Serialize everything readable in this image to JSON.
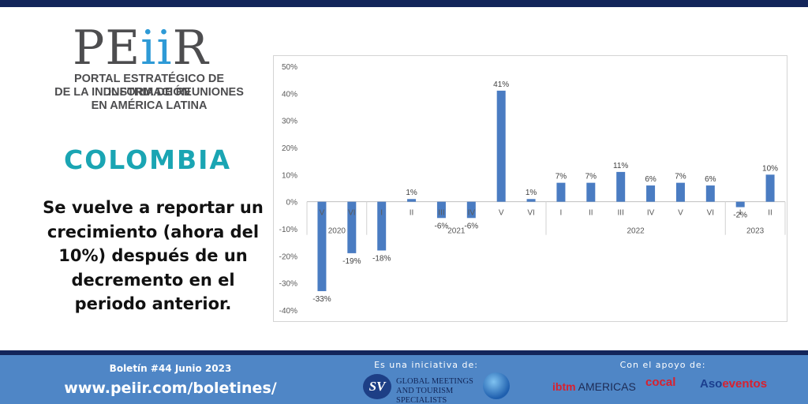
{
  "logo": {
    "word_pre": "PE",
    "word_ii": "ii",
    "word_post": "R",
    "tagline": [
      "PORTAL ESTRATÉGICO DE INFORMACIÓN",
      "DE LA INDUSTRIA DE REUNIONES",
      "EN AMÉRICA LATINA"
    ]
  },
  "country": "COLOMBIA",
  "headline": "Se vuelve a reportar un crecimiento (ahora del 10%) después de un decremento en el periodo anterior.",
  "footer": {
    "bulletin": "Boletín #44 Junio 2023",
    "url": "www.peiir.com/boletines/",
    "initiative_label": "Es una iniciativa de:",
    "support_label": "Con el apoyo de:",
    "gmts_mark": "SV",
    "gmts_name_line1": "GLOBAL MEETINGS",
    "gmts_name_line2": "AND TOURISM SPECIALISTS",
    "ibtm_a": "ibtm",
    "ibtm_b": " AMERICAS",
    "cocal": "cocal",
    "asoeventos_a": "Aso",
    "asoeventos_b": "eventos"
  },
  "chart_data": {
    "type": "bar",
    "title": "",
    "xlabel": "",
    "ylabel": "",
    "ylim": [
      -40,
      50
    ],
    "yticks": [
      50,
      40,
      30,
      20,
      10,
      0,
      -10,
      -20,
      -30,
      -40
    ],
    "ytick_labels": [
      "50%",
      "40%",
      "30%",
      "20%",
      "10%",
      "0%",
      "-10%",
      "-20%",
      "-30%",
      "-40%"
    ],
    "categories": [
      "V",
      "VI",
      "I",
      "II",
      "III",
      "IV",
      "V",
      "VI",
      "I",
      "II",
      "III",
      "IV",
      "V",
      "VI",
      "I",
      "II"
    ],
    "values": [
      -33,
      -19,
      -18,
      1,
      -6,
      -6,
      41,
      1,
      7,
      7,
      11,
      6,
      7,
      6,
      -2,
      10
    ],
    "value_labels": [
      "-33%",
      "-19%",
      "-18%",
      "1%",
      "-6%",
      "-6%",
      "41%",
      "1%",
      "7%",
      "7%",
      "11%",
      "6%",
      "7%",
      "6%",
      "-2%",
      "10%"
    ],
    "groups": [
      {
        "label": "2020",
        "start": 0,
        "end": 1
      },
      {
        "label": "2021",
        "start": 2,
        "end": 7
      },
      {
        "label": "2022",
        "start": 8,
        "end": 13
      },
      {
        "label": "2023",
        "start": 14,
        "end": 15
      }
    ],
    "bar_color": "#4a7cc2",
    "grid": false,
    "legend": "none"
  }
}
